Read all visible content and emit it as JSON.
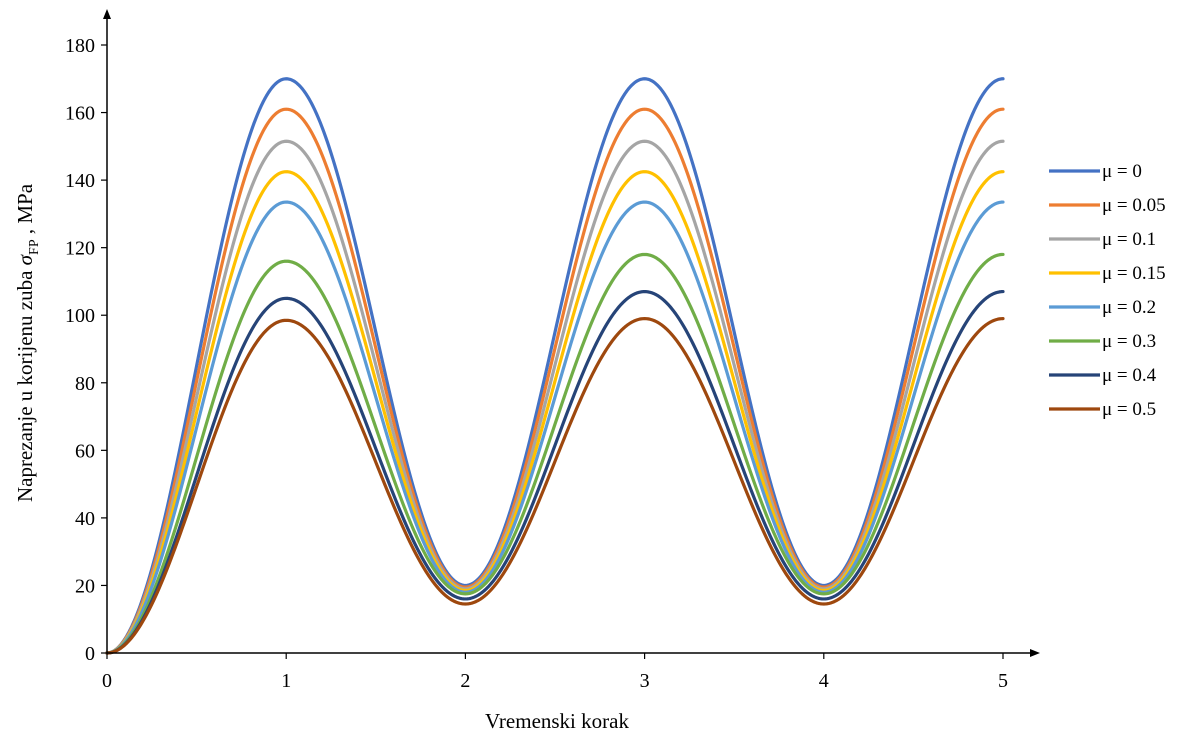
{
  "chart_data": {
    "type": "line",
    "title": "",
    "xlabel": "Vremenski korak",
    "ylabel": "Naprezanje u korijenu zuba σ_FP , MPa",
    "ylabel_parts": {
      "prefix": "Naprezanje u korijenu zuba ",
      "symbol": "σ",
      "subscript": "FP",
      "suffix": " , MPa"
    },
    "xlim": [
      0,
      5
    ],
    "ylim": [
      0,
      180
    ],
    "xticks": [
      "0",
      "1",
      "2",
      "3",
      "4",
      "5"
    ],
    "yticks": [
      "0",
      "20",
      "40",
      "60",
      "80",
      "100",
      "120",
      "140",
      "160",
      "180"
    ],
    "grid": false,
    "legend_position": "right",
    "series": [
      {
        "name": "μ = 0",
        "color": "#4472C4",
        "x": [
          0,
          1,
          2,
          3,
          4,
          5
        ],
        "values": [
          0,
          170,
          20,
          170,
          20,
          170
        ]
      },
      {
        "name": "μ = 0.05",
        "color": "#ED7D31",
        "x": [
          0,
          1,
          2,
          3,
          4,
          5
        ],
        "values": [
          0,
          161,
          19.5,
          161,
          19.5,
          161
        ]
      },
      {
        "name": "μ = 0.1",
        "color": "#A5A5A5",
        "x": [
          0,
          1,
          2,
          3,
          4,
          5
        ],
        "values": [
          0,
          151.5,
          19,
          151.5,
          19,
          151.5
        ]
      },
      {
        "name": "μ = 0.15",
        "color": "#FFC000",
        "x": [
          0,
          1,
          2,
          3,
          4,
          5
        ],
        "values": [
          0,
          142.5,
          18.5,
          142.5,
          18.5,
          142.5
        ]
      },
      {
        "name": "μ = 0.2",
        "color": "#5B9BD5",
        "x": [
          0,
          1,
          2,
          3,
          4,
          5
        ],
        "values": [
          0,
          133.5,
          18,
          133.5,
          18,
          133.5
        ]
      },
      {
        "name": "μ = 0.3",
        "color": "#70AD47",
        "x": [
          0,
          1,
          2,
          3,
          4,
          5
        ],
        "values": [
          0,
          116,
          17.5,
          118,
          17.5,
          118
        ]
      },
      {
        "name": "μ = 0.4",
        "color": "#264478",
        "x": [
          0,
          1,
          2,
          3,
          4,
          5
        ],
        "values": [
          0,
          105,
          16,
          107,
          16,
          107
        ]
      },
      {
        "name": "μ = 0.5",
        "color": "#9E480E",
        "x": [
          0,
          1,
          2,
          3,
          4,
          5
        ],
        "values": [
          0,
          98.5,
          14.5,
          99,
          14.5,
          99
        ]
      }
    ]
  }
}
